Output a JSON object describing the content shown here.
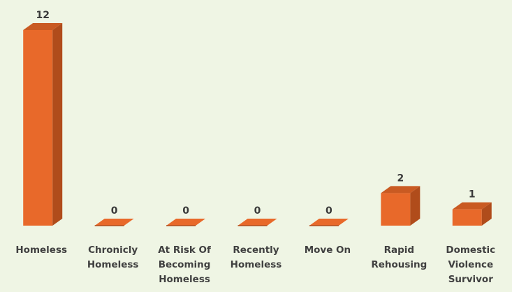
{
  "chart_data": {
    "type": "bar",
    "categories": [
      [
        "Homeless"
      ],
      [
        "Chronicly",
        "Homeless"
      ],
      [
        "At Risk Of",
        "Becoming",
        "Homeless"
      ],
      [
        "Recently",
        "Homeless"
      ],
      [
        "Move On"
      ],
      [
        "Rapid",
        "Rehousing"
      ],
      [
        "Domestic",
        "Violence",
        "Survivor"
      ]
    ],
    "values": [
      12,
      0,
      0,
      0,
      0,
      2,
      1
    ],
    "data_labels": [
      "12",
      "0",
      "0",
      "0",
      "0",
      "2",
      "1"
    ],
    "title": "",
    "xlabel": "",
    "ylabel": "",
    "ylim": [
      0,
      12
    ],
    "grid": false,
    "style": "3d-column",
    "colors": {
      "bar_front": "#e8692a",
      "bar_side": "#b04c1b",
      "bar_top": "#c95a22",
      "background": "#eff5e4"
    }
  }
}
